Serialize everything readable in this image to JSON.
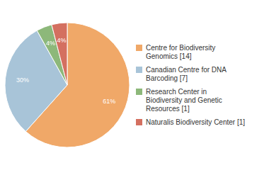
{
  "chart_data": {
    "type": "pie",
    "categories": [
      "Centre for Biodiversity\nGenomics [14]",
      "Canadian Centre for DNA\nBarcoding [7]",
      "Research Center in\nBiodiversity and Genetic\nResources [1]",
      "Naturalis Biodiversity Center [1]"
    ],
    "values": [
      61,
      30,
      4,
      4
    ],
    "value_labels": [
      "61%",
      "30%",
      "4%",
      "4%"
    ],
    "colors": [
      "#f0a868",
      "#a8c4d8",
      "#8db87a",
      "#d47060"
    ],
    "data_labels": true,
    "legend": "right"
  }
}
